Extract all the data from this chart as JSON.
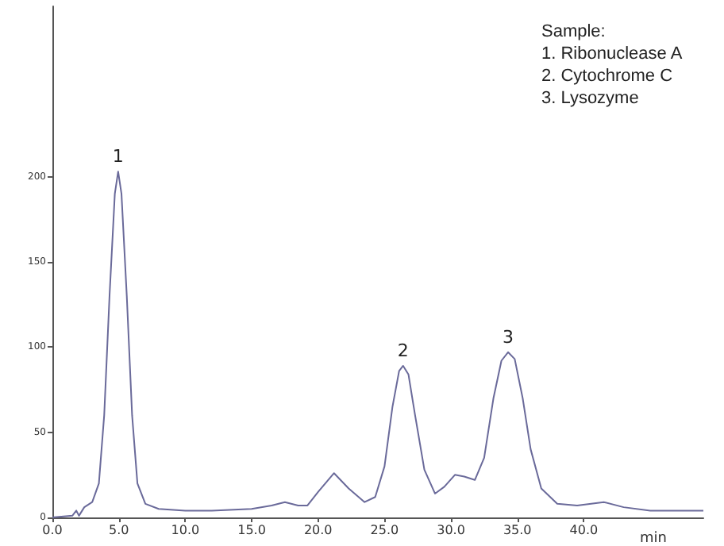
{
  "chart_data": {
    "type": "line",
    "xlabel": "min",
    "x": [
      0,
      1.5,
      1.8,
      2.0,
      2.4,
      3.0,
      3.5,
      3.9,
      4.3,
      4.7,
      4.95,
      5.2,
      5.6,
      6.0,
      6.4,
      7.0,
      8,
      10,
      12,
      15,
      16.5,
      17.5,
      18.5,
      19.2,
      20,
      21.2,
      22.3,
      23.5,
      24.3,
      25,
      25.6,
      26.1,
      26.4,
      26.8,
      27.3,
      28,
      28.8,
      29.5,
      30.3,
      31,
      31.8,
      32.5,
      33.2,
      33.8,
      34.3,
      34.8,
      35.4,
      36,
      36.8,
      38,
      39.5,
      41.5,
      43,
      45,
      49
    ],
    "series": [
      {
        "color": "#6a6a9a",
        "values": [
          0,
          1,
          4,
          1,
          6,
          9,
          20,
          60,
          130,
          190,
          203,
          190,
          130,
          60,
          20,
          8,
          5,
          4,
          4,
          5,
          7,
          9,
          7,
          7,
          15,
          26,
          17,
          9,
          12,
          30,
          65,
          86,
          89,
          84,
          60,
          28,
          14,
          18,
          25,
          24,
          22,
          35,
          70,
          92,
          97,
          93,
          70,
          40,
          17,
          8,
          7,
          9,
          6,
          4,
          4
        ]
      }
    ],
    "xlim": [
      0,
      49
    ],
    "xticks": [
      {
        "value": 0,
        "label": "0.0"
      },
      {
        "value": 5,
        "label": "5.0"
      },
      {
        "value": 10,
        "label": "10.0"
      },
      {
        "value": 15,
        "label": "15.0"
      },
      {
        "value": 20,
        "label": "20.0"
      },
      {
        "value": 25,
        "label": "25.0"
      },
      {
        "value": 30,
        "label": "30.0"
      },
      {
        "value": 35,
        "label": "35.0"
      },
      {
        "value": 40,
        "label": "40.0"
      }
    ],
    "ylim": [
      0,
      300
    ],
    "yticks": [
      0,
      50,
      100,
      150,
      200
    ],
    "grid": false,
    "marker": "none",
    "line_style": "solid",
    "annotations": [
      {
        "text": "1",
        "x": 4.95,
        "y": 203
      },
      {
        "text": "2",
        "x": 26.4,
        "y": 89
      },
      {
        "text": "3",
        "x": 34.3,
        "y": 97
      },
      "Sample:\n1. Ribonuclease A\n2. Cytochrome C\n3. Lysozyme"
    ]
  }
}
